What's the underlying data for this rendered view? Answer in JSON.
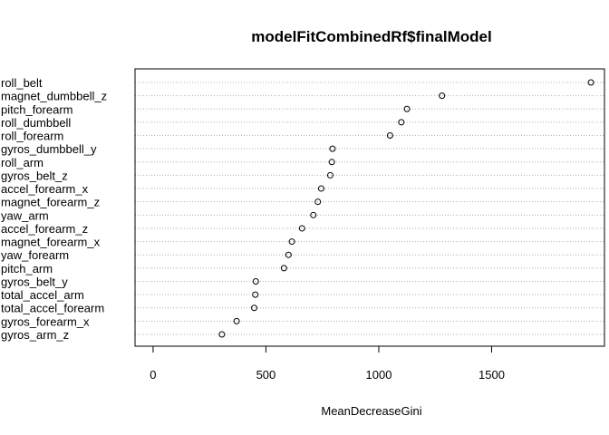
{
  "chart_data": {
    "type": "scatter",
    "title": "modelFitCombinedRf$finalModel",
    "xlabel": "MeanDecreaseGini",
    "ylabel": "",
    "xlim": [
      -80,
      2000
    ],
    "xticks": [
      0,
      500,
      1000,
      1500
    ],
    "grid": "horizontal dotted",
    "categories": [
      "roll_belt",
      "magnet_dumbbell_z",
      "pitch_forearm",
      "roll_dumbbell",
      "roll_forearm",
      "gyros_dumbbell_y",
      "roll_arm",
      "gyros_belt_z",
      "accel_forearm_x",
      "magnet_forearm_z",
      "yaw_arm",
      "accel_forearm_z",
      "magnet_forearm_x",
      "yaw_forearm",
      "pitch_arm",
      "gyros_belt_y",
      "total_accel_arm",
      "total_accel_forearm",
      "gyros_forearm_x",
      "gyros_arm_z"
    ],
    "values": [
      1940,
      1280,
      1125,
      1100,
      1050,
      795,
      792,
      785,
      745,
      730,
      710,
      660,
      615,
      600,
      580,
      455,
      453,
      448,
      370,
      305
    ]
  }
}
